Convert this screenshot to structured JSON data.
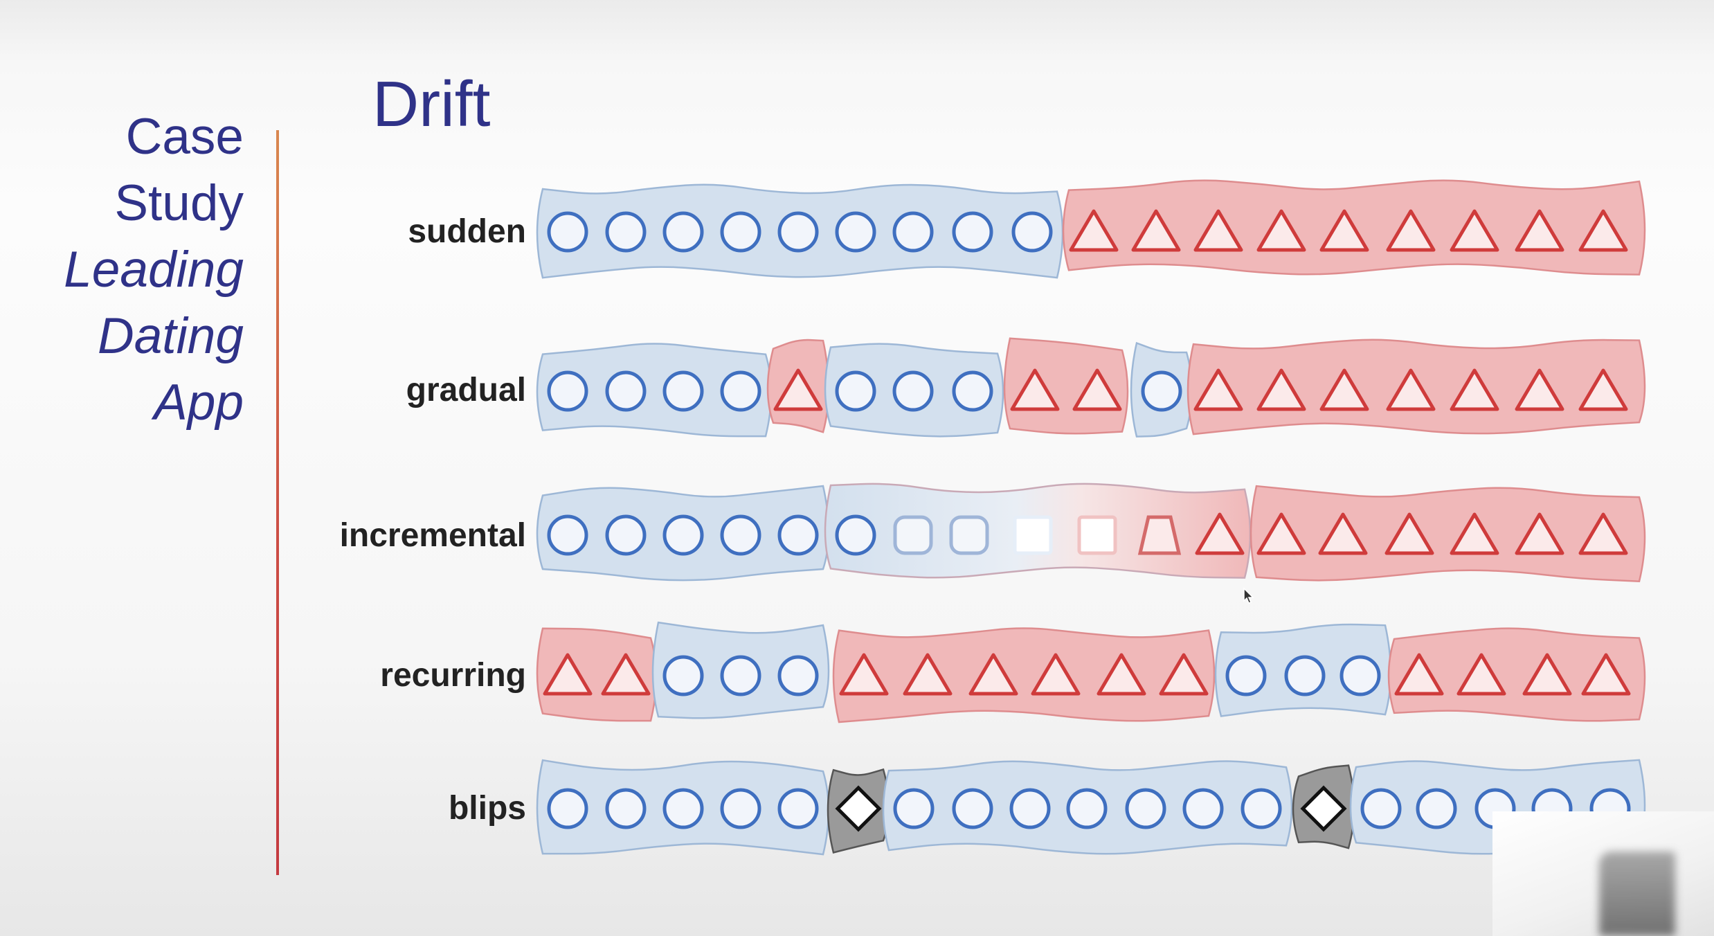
{
  "sidebar": {
    "line1": "Case",
    "line2": "Study",
    "line3": "Leading",
    "line4": "Dating",
    "line5": "App"
  },
  "title": "Drift",
  "rows": [
    {
      "label": "sudden",
      "markers": [
        "circle",
        "circle",
        "circle",
        "circle",
        "circle",
        "circle",
        "circle",
        "circle",
        "circle",
        "triangle",
        "triangle",
        "triangle",
        "triangle",
        "triangle",
        "triangle",
        "triangle",
        "triangle",
        "triangle"
      ]
    },
    {
      "label": "gradual",
      "markers": [
        "circle",
        "circle",
        "circle",
        "circle",
        "triangle",
        "circle",
        "circle",
        "circle",
        "triangle",
        "triangle",
        "circle",
        "triangle",
        "triangle",
        "triangle",
        "triangle",
        "triangle",
        "triangle",
        "triangle"
      ]
    },
    {
      "label": "incremental",
      "markers": [
        "circle",
        "circle",
        "circle",
        "circle",
        "circle",
        "circle",
        "rounded-square",
        "rounded-square",
        "square",
        "square",
        "trapezoid",
        "triangle",
        "triangle",
        "triangle",
        "triangle",
        "triangle",
        "triangle",
        "triangle"
      ]
    },
    {
      "label": "recurring",
      "markers": [
        "triangle",
        "triangle",
        "circle",
        "circle",
        "circle",
        "triangle",
        "triangle",
        "triangle",
        "triangle",
        "triangle",
        "triangle",
        "circle",
        "circle",
        "circle",
        "triangle",
        "triangle",
        "triangle",
        "triangle"
      ]
    },
    {
      "label": "blips",
      "markers": [
        "circle",
        "circle",
        "circle",
        "circle",
        "circle",
        "diamond",
        "circle",
        "circle",
        "circle",
        "circle",
        "circle",
        "circle",
        "circle",
        "diamond",
        "circle",
        "circle",
        "circle",
        "circle",
        "circle"
      ]
    }
  ],
  "colors": {
    "blue_fill": "#d3e0ee",
    "blue_stroke": "#3f6fc0",
    "red_fill": "#f0b8b9",
    "red_stroke": "#cf3b3b",
    "gray_fill": "#9a9a9a",
    "text_dark": "#222222",
    "title_indigo": "#2f3288"
  }
}
